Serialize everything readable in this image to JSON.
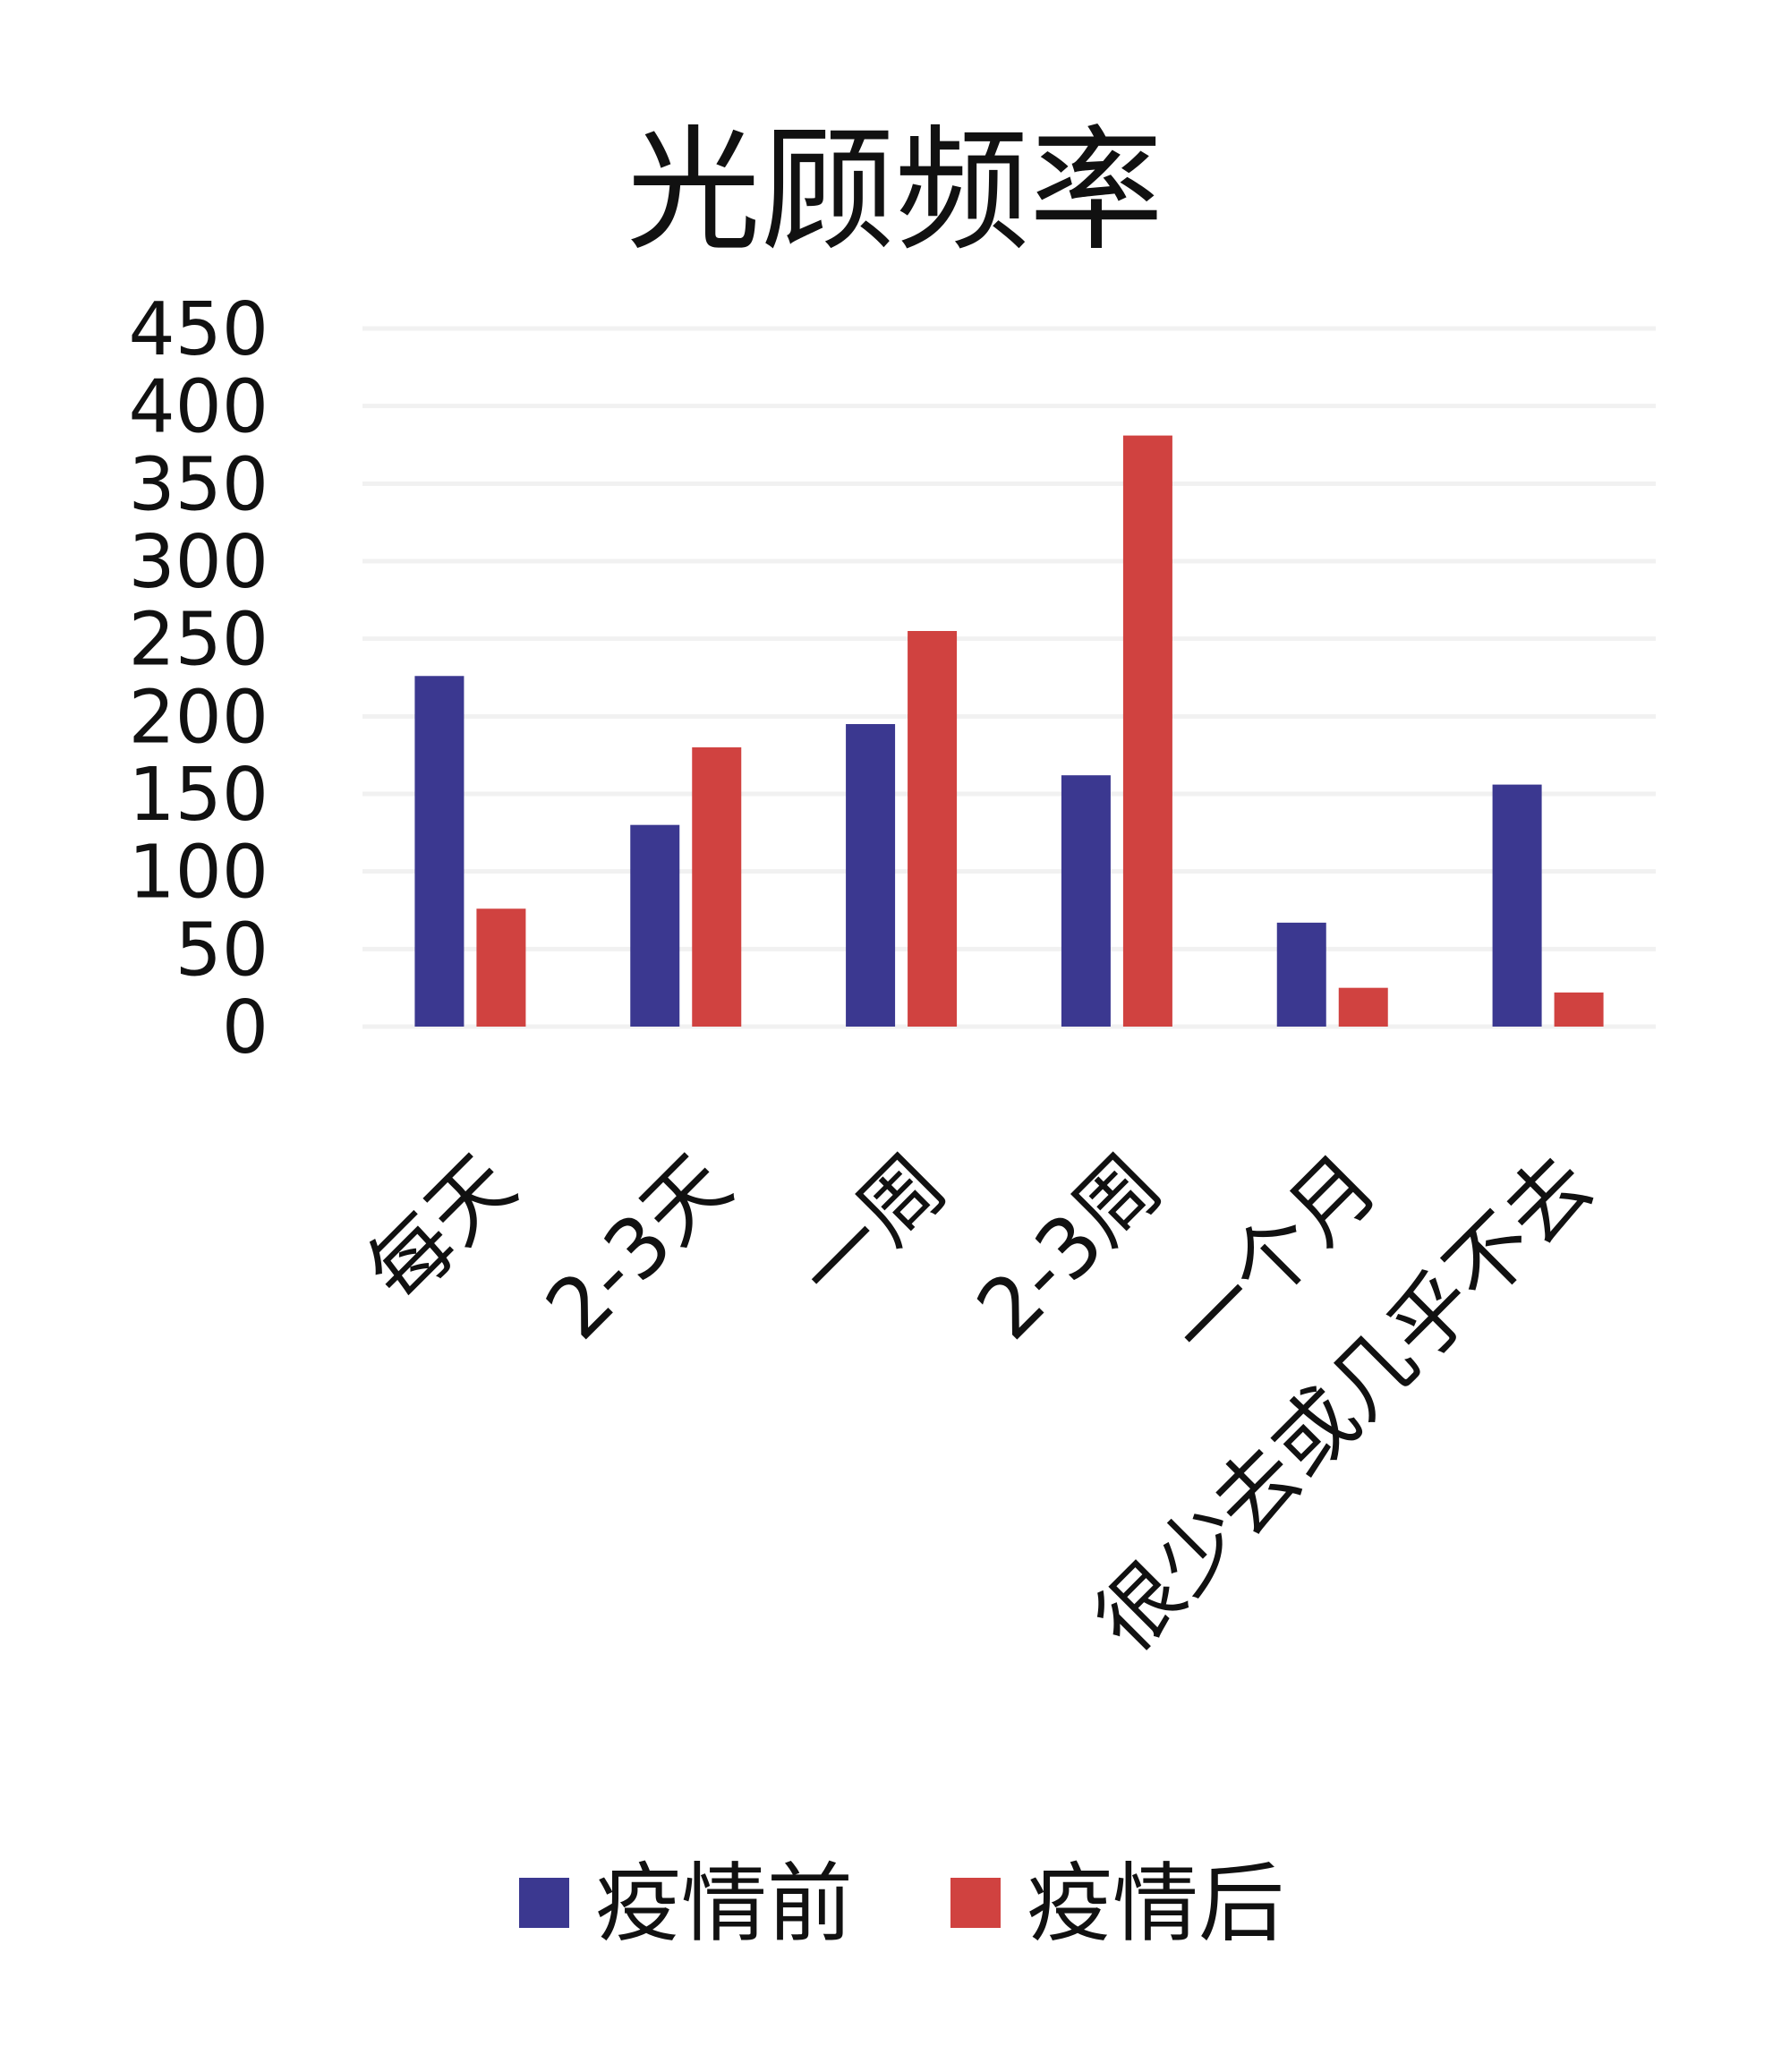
{
  "chart_data": {
    "type": "bar",
    "title": "光顾频率",
    "categories": [
      "每天",
      "2-3天",
      "一周",
      "2-3周",
      "一个月",
      "很少去或几乎不去"
    ],
    "series": [
      {
        "name": "疫情前",
        "color": "#3b3890",
        "values": [
          226,
          130,
          195,
          162,
          67,
          156
        ]
      },
      {
        "name": "疫情后",
        "color": "#d04240",
        "values": [
          76,
          180,
          255,
          381,
          25,
          22
        ]
      }
    ],
    "ylim": [
      0,
      450
    ],
    "yticks": [
      "0",
      "50",
      "100",
      "150",
      "200",
      "250",
      "300",
      "350",
      "400",
      "450"
    ],
    "xlabel": "",
    "ylabel": "",
    "grid": true,
    "legend": "bottom"
  }
}
